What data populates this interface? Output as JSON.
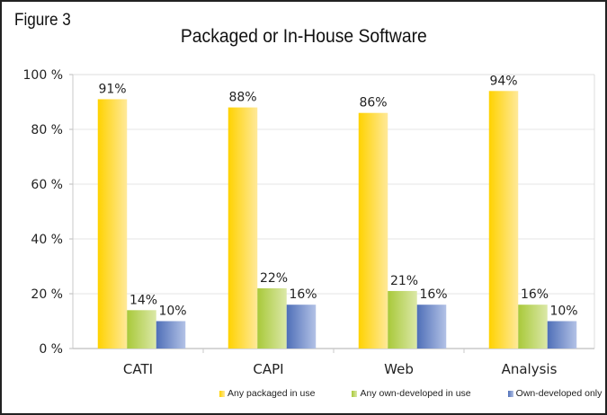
{
  "figure_label": "Figure 3",
  "chart_data": {
    "type": "bar",
    "title": "Packaged or In-House Software",
    "xlabel": "",
    "ylabel": "",
    "ylim": [
      0,
      100
    ],
    "yticks": [
      "0 %",
      "20 %",
      "40 %",
      "60 %",
      "80 %",
      "100 %"
    ],
    "ytick_values": [
      0,
      20,
      40,
      60,
      80,
      100
    ],
    "grid": true,
    "categories": [
      "CATI",
      "CAPI",
      "Web",
      "Analysis"
    ],
    "series": [
      {
        "name": "Any packaged in use",
        "values": [
          91,
          88,
          86,
          94
        ],
        "labels": [
          "91%",
          "88%",
          "86%",
          "94%"
        ],
        "color_dark": "#ffd200",
        "color_light": "#ffe99a"
      },
      {
        "name": "Any own-developed in use",
        "values": [
          14,
          22,
          21,
          16
        ],
        "labels": [
          "14%",
          "22%",
          "21%",
          "16%"
        ],
        "color_dark": "#a9c93a",
        "color_light": "#dbe8a8"
      },
      {
        "name": "Own-developed only",
        "values": [
          10,
          16,
          16,
          10
        ],
        "labels": [
          "10%",
          "16%",
          "16%",
          "10%"
        ],
        "color_dark": "#4f6fb8",
        "color_light": "#b3c2e6"
      }
    ],
    "legend_position": "bottom"
  }
}
